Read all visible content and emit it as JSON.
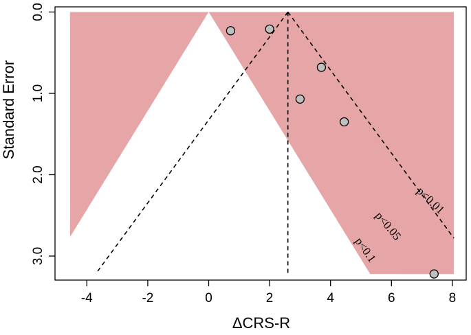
{
  "chart_data": {
    "type": "scatter",
    "subtype": "contour-enhanced funnel plot",
    "title": "",
    "xlabel": "ΔCRS-R",
    "ylabel": "Standard Error",
    "x_ticks": [
      -4,
      -2,
      0,
      2,
      4,
      6,
      8
    ],
    "x_tick_labels": [
      "-4",
      "-2",
      "0",
      "2",
      "4",
      "6",
      "8"
    ],
    "y_ticks": [
      0,
      1,
      2,
      3
    ],
    "y_tick_labels": [
      "0.0",
      "1.0",
      "2.0",
      "3.0"
    ],
    "xlim": [
      -4.55,
      8.05
    ],
    "ylim": [
      3.22,
      0
    ],
    "y_reversed": true,
    "grid": false,
    "points": [
      {
        "x": 0.72,
        "y": 0.23
      },
      {
        "x": 2.0,
        "y": 0.21
      },
      {
        "x": 3.0,
        "y": 1.07
      },
      {
        "x": 3.7,
        "y": 0.68
      },
      {
        "x": 4.45,
        "y": 1.35
      },
      {
        "x": 7.4,
        "y": 3.22
      }
    ],
    "contours": [
      {
        "label": "p<0.1",
        "z": 1.645,
        "color": "#e6a6a8"
      },
      {
        "label": "p<0.05",
        "z": 1.96,
        "color": "#f2cdd0"
      },
      {
        "label": "p<0.01",
        "z": 2.576,
        "color": "#fbeced"
      }
    ],
    "pooled_estimate": 2.6,
    "ci_z": 1.96,
    "colors": {
      "point_fill": "#bfbfbf",
      "point_stroke": "#000000",
      "line": "#000000"
    }
  }
}
